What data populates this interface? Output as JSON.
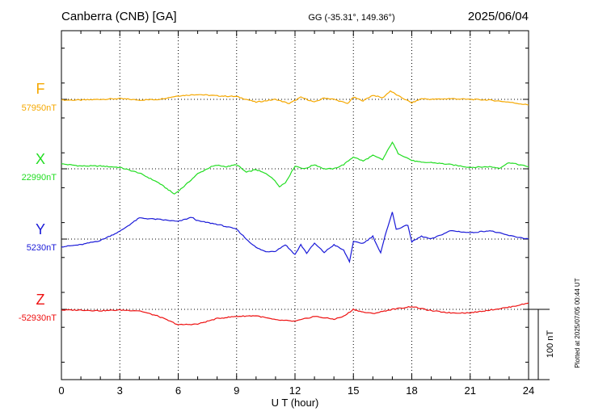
{
  "header": {
    "station": "Canberra (CNB)  [GA]",
    "coords": "GG (-35.31°, 149.36°)",
    "date": "2025/06/04"
  },
  "plotted_note": "Plotted at 2025/07/05 00:44 UT",
  "scale_label": "100 nT",
  "chart_data": {
    "type": "line",
    "xlabel": "U T (hour)",
    "xlim": [
      0,
      24
    ],
    "xticks": [
      0,
      3,
      6,
      9,
      12,
      15,
      18,
      21,
      24
    ],
    "scale_bar_nT": 100,
    "grid": true,
    "series": [
      {
        "name": "F",
        "baseline_label": "57950nT",
        "baseline": 57950,
        "color": "#f5a800",
        "points": [
          [
            0,
            57949
          ],
          [
            1,
            57949
          ],
          [
            2,
            57950
          ],
          [
            3,
            57951
          ],
          [
            4,
            57949
          ],
          [
            5,
            57950
          ],
          [
            6,
            57955
          ],
          [
            7,
            57957
          ],
          [
            8,
            57955
          ],
          [
            9,
            57954
          ],
          [
            10,
            57946
          ],
          [
            11,
            57950
          ],
          [
            11.7,
            57944
          ],
          [
            12.3,
            57953
          ],
          [
            13,
            57946
          ],
          [
            13.5,
            57952
          ],
          [
            14,
            57950
          ],
          [
            14.7,
            57944
          ],
          [
            15,
            57953
          ],
          [
            15.5,
            57948
          ],
          [
            16,
            57956
          ],
          [
            16.5,
            57952
          ],
          [
            16.9,
            57962
          ],
          [
            17.3,
            57955
          ],
          [
            18,
            57945
          ],
          [
            18.5,
            57951
          ],
          [
            19,
            57950
          ],
          [
            20,
            57951
          ],
          [
            21,
            57950
          ],
          [
            22,
            57949
          ],
          [
            23,
            57946
          ],
          [
            24,
            57942
          ]
        ]
      },
      {
        "name": "X",
        "baseline_label": "22990nT",
        "baseline": 22990,
        "color": "#22dd22",
        "points": [
          [
            0,
            22997
          ],
          [
            1,
            22994
          ],
          [
            2,
            22994
          ],
          [
            3,
            22992
          ],
          [
            4,
            22984
          ],
          [
            5,
            22970
          ],
          [
            5.5,
            22960
          ],
          [
            5.8,
            22954
          ],
          [
            6.3,
            22965
          ],
          [
            7,
            22983
          ],
          [
            7.7,
            22993
          ],
          [
            8,
            22995
          ],
          [
            8.5,
            22993
          ],
          [
            9,
            22996
          ],
          [
            9.5,
            22985
          ],
          [
            10,
            22989
          ],
          [
            10.5,
            22983
          ],
          [
            10.8,
            22978
          ],
          [
            11.2,
            22965
          ],
          [
            11.5,
            22970
          ],
          [
            12,
            22994
          ],
          [
            12.5,
            22990
          ],
          [
            13,
            22996
          ],
          [
            13.5,
            22990
          ],
          [
            14,
            22990
          ],
          [
            14.5,
            22996
          ],
          [
            15,
            23007
          ],
          [
            15.5,
            23001
          ],
          [
            16,
            23009
          ],
          [
            16.5,
            23003
          ],
          [
            17,
            23028
          ],
          [
            17.3,
            23012
          ],
          [
            18,
            23002
          ],
          [
            18.5,
            22999
          ],
          [
            19,
            22999
          ],
          [
            20,
            22996
          ],
          [
            21,
            22992
          ],
          [
            22,
            22993
          ],
          [
            22.5,
            22991
          ],
          [
            23,
            22999
          ],
          [
            24,
            22993
          ]
        ]
      },
      {
        "name": "Y",
        "baseline_label": "5230nT",
        "baseline": 5230,
        "color": "#1a1ad8",
        "points": [
          [
            0,
            5219
          ],
          [
            1,
            5222
          ],
          [
            2,
            5228
          ],
          [
            3,
            5241
          ],
          [
            4,
            5260
          ],
          [
            5,
            5258
          ],
          [
            6,
            5255
          ],
          [
            6.7,
            5261
          ],
          [
            7,
            5256
          ],
          [
            8,
            5251
          ],
          [
            9,
            5244
          ],
          [
            9.5,
            5230
          ],
          [
            10,
            5218
          ],
          [
            10.5,
            5212
          ],
          [
            11,
            5213
          ],
          [
            11.5,
            5222
          ],
          [
            12,
            5208
          ],
          [
            12.3,
            5222
          ],
          [
            12.6,
            5210
          ],
          [
            13,
            5224
          ],
          [
            13.5,
            5211
          ],
          [
            14,
            5222
          ],
          [
            14.5,
            5214
          ],
          [
            14.8,
            5198
          ],
          [
            15,
            5226
          ],
          [
            15.5,
            5224
          ],
          [
            16,
            5234
          ],
          [
            16.4,
            5210
          ],
          [
            16.7,
            5242
          ],
          [
            17,
            5268
          ],
          [
            17.2,
            5244
          ],
          [
            17.8,
            5250
          ],
          [
            18,
            5226
          ],
          [
            18.5,
            5234
          ],
          [
            19,
            5230
          ],
          [
            20,
            5242
          ],
          [
            21,
            5239
          ],
          [
            22,
            5242
          ],
          [
            23,
            5235
          ],
          [
            24,
            5230
          ]
        ]
      },
      {
        "name": "Z",
        "baseline_label": "-52930nT",
        "baseline": -52930,
        "color": "#ee1111",
        "points": [
          [
            0,
            -52931
          ],
          [
            1,
            -52931
          ],
          [
            2,
            -52932
          ],
          [
            3,
            -52931
          ],
          [
            4,
            -52932
          ],
          [
            5,
            -52940
          ],
          [
            6,
            -52952
          ],
          [
            7,
            -52951
          ],
          [
            8,
            -52943
          ],
          [
            9,
            -52940
          ],
          [
            10,
            -52939
          ],
          [
            11,
            -52945
          ],
          [
            12,
            -52947
          ],
          [
            13,
            -52940
          ],
          [
            14,
            -52944
          ],
          [
            14.5,
            -52940
          ],
          [
            15,
            -52930
          ],
          [
            15.5,
            -52934
          ],
          [
            16,
            -52936
          ],
          [
            16.5,
            -52933
          ],
          [
            17,
            -52930
          ],
          [
            18,
            -52926
          ],
          [
            19,
            -52932
          ],
          [
            20,
            -52935
          ],
          [
            21,
            -52935
          ],
          [
            22,
            -52931
          ],
          [
            23,
            -52927
          ],
          [
            24,
            -52921
          ]
        ]
      }
    ]
  }
}
